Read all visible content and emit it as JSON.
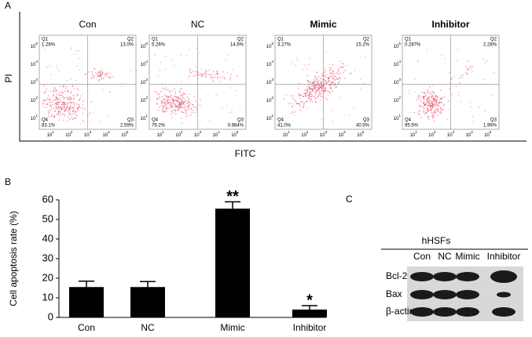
{
  "panel_labels": [
    "A",
    "B",
    "C"
  ],
  "flow": {
    "x_label": "FITC",
    "y_label": "PI",
    "ticks": [
      {
        "base": "10",
        "exp": "1"
      },
      {
        "base": "10",
        "exp": "2"
      },
      {
        "base": "10",
        "exp": "3"
      },
      {
        "base": "10",
        "exp": "4"
      },
      {
        "base": "10",
        "exp": "5"
      }
    ],
    "plots": [
      {
        "title": "Con",
        "quadrants": [
          {
            "name": "Q1",
            "value": "1.26%"
          },
          {
            "name": "Q2",
            "value": "13.0%"
          },
          {
            "name": "Q3",
            "value": "2.59%"
          },
          {
            "name": "Q4",
            "value": "83.1%"
          }
        ]
      },
      {
        "title": "NC",
        "quadrants": [
          {
            "name": "Q1",
            "value": "5.26%"
          },
          {
            "name": "Q2",
            "value": "14.6%"
          },
          {
            "name": "Q3",
            "value": "0.984%"
          },
          {
            "name": "Q4",
            "value": "79.2%"
          }
        ]
      },
      {
        "title": "Mimic",
        "quadrants": [
          {
            "name": "Q1",
            "value": "3.27%"
          },
          {
            "name": "Q2",
            "value": "15.2%"
          },
          {
            "name": "Q3",
            "value": "40.5%"
          },
          {
            "name": "Q4",
            "value": "41.0%"
          }
        ]
      },
      {
        "title": "Inhibitor",
        "quadrants": [
          {
            "name": "Q1",
            "value": "0.287%"
          },
          {
            "name": "Q2",
            "value": "2.28%"
          },
          {
            "name": "Q3",
            "value": "1.96%"
          },
          {
            "name": "Q4",
            "value": "95.5%"
          }
        ]
      }
    ]
  },
  "chart_data": {
    "type": "bar",
    "y_label": "Cell apoptosis rate (%)",
    "categories": [
      "Con",
      "NC",
      "Mimic",
      "Inhibitor"
    ],
    "values": [
      15.5,
      15.5,
      55.5,
      4
    ],
    "errors": [
      3,
      2.8,
      3.5,
      2
    ],
    "significance": [
      null,
      null,
      "**",
      "*"
    ],
    "color": "#000000",
    "ylim": [
      0,
      60
    ],
    "yticks": [
      0,
      10,
      20,
      30,
      40,
      50,
      60
    ]
  },
  "blot": {
    "title": "hHSFs",
    "lanes": [
      "Con",
      "NC",
      "Mimic",
      "Inhibitor"
    ],
    "rows": [
      "Bcl-2",
      "Bax",
      "β-actin"
    ]
  }
}
